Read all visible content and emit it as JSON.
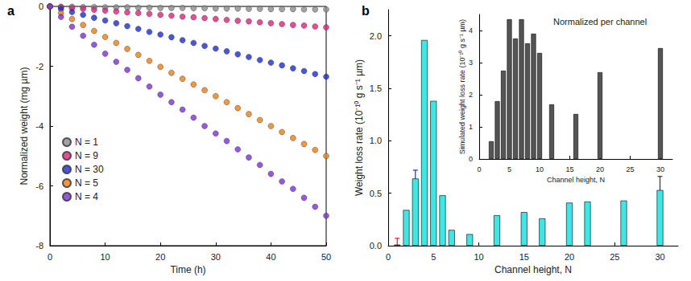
{
  "chart_data": [
    {
      "panel": "a",
      "type": "scatter",
      "marker": "circle",
      "legend": "lower left",
      "x_label": "Time (h)",
      "y_label": "Normalized weight (mg µm)",
      "xlim": [
        0,
        50
      ],
      "xticks": [
        0,
        10,
        20,
        30,
        40,
        50
      ],
      "ylim": [
        -8,
        0
      ],
      "yticks": [
        -8,
        -6,
        -4,
        -2,
        0
      ],
      "x": [
        0,
        2,
        4,
        6,
        8,
        10,
        12,
        14,
        16,
        18,
        20,
        22,
        24,
        26,
        28,
        30,
        32,
        34,
        36,
        38,
        40,
        42,
        44,
        46,
        48,
        50
      ],
      "series": [
        {
          "name": "N = 1",
          "color": "#8c8c8c",
          "values": [
            0,
            -0.01,
            -0.01,
            -0.02,
            -0.02,
            -0.03,
            -0.03,
            -0.03,
            -0.04,
            -0.04,
            -0.05,
            -0.05,
            -0.05,
            -0.06,
            -0.06,
            -0.07,
            -0.07,
            -0.07,
            -0.08,
            -0.08,
            -0.09,
            -0.09,
            -0.09,
            -0.1,
            -0.1,
            -0.1
          ]
        },
        {
          "name": "N = 9",
          "color": "#e0207a",
          "values": [
            0,
            -0.03,
            -0.06,
            -0.08,
            -0.11,
            -0.14,
            -0.17,
            -0.2,
            -0.22,
            -0.25,
            -0.28,
            -0.31,
            -0.34,
            -0.36,
            -0.39,
            -0.42,
            -0.45,
            -0.48,
            -0.5,
            -0.53,
            -0.56,
            -0.59,
            -0.62,
            -0.64,
            -0.67,
            -0.7
          ]
        },
        {
          "name": "N = 30",
          "color": "#1a2bd6",
          "values": [
            0,
            -0.09,
            -0.19,
            -0.28,
            -0.38,
            -0.47,
            -0.56,
            -0.66,
            -0.75,
            -0.85,
            -0.94,
            -1.03,
            -1.13,
            -1.22,
            -1.32,
            -1.41,
            -1.5,
            -1.6,
            -1.69,
            -1.79,
            -1.88,
            -1.97,
            -2.07,
            -2.16,
            -2.26,
            -2.35
          ]
        },
        {
          "name": "N = 5",
          "color": "#f07c10",
          "values": [
            0,
            -0.22,
            -0.42,
            -0.62,
            -0.82,
            -1.02,
            -1.22,
            -1.42,
            -1.62,
            -1.82,
            -2.02,
            -2.22,
            -2.42,
            -2.61,
            -2.8,
            -3.0,
            -3.2,
            -3.4,
            -3.6,
            -3.8,
            -4.0,
            -4.2,
            -4.4,
            -4.6,
            -4.8,
            -5.0
          ]
        },
        {
          "name": "N = 4",
          "color": "#7b2fd8",
          "values": [
            0,
            -0.35,
            -0.68,
            -0.98,
            -1.28,
            -1.58,
            -1.85,
            -2.12,
            -2.4,
            -2.68,
            -2.95,
            -3.2,
            -3.45,
            -3.72,
            -4.0,
            -4.25,
            -4.5,
            -4.78,
            -5.05,
            -5.3,
            -5.6,
            -5.85,
            -6.1,
            -6.4,
            -6.7,
            -7.0
          ]
        }
      ]
    },
    {
      "panel": "b",
      "type": "bar",
      "color": "#3ee6e6",
      "x_label": "Channel height, N",
      "y_label": "Weight loss rate (10⁻¹⁰ g s⁻¹ µm)",
      "xlim": [
        0,
        32
      ],
      "xticks": [
        0,
        5,
        10,
        15,
        20,
        25,
        30
      ],
      "ylim": [
        0,
        2.25
      ],
      "yticks": [
        {
          "value": 0,
          "label": "0.0"
        },
        0.5,
        {
          "value": 1,
          "label": "1.0"
        },
        1.5,
        {
          "value": 2,
          "label": "2.0"
        }
      ],
      "x": [
        1,
        2,
        3,
        4,
        5,
        6,
        7,
        9,
        12,
        15,
        17,
        20,
        22,
        26,
        30
      ],
      "values": [
        0.01,
        0.34,
        0.64,
        1.96,
        1.38,
        0.48,
        0.15,
        0.11,
        0.29,
        0.32,
        0.26,
        0.41,
        0.42,
        0.43,
        0.53
      ],
      "errors": [
        0.06,
        null,
        0.08,
        null,
        null,
        null,
        null,
        null,
        null,
        null,
        null,
        null,
        null,
        null,
        0.13
      ]
    },
    {
      "type": "bar",
      "title": "Normalized per channel",
      "color": "#555555",
      "x_label": "Channel height, N",
      "y_label": "Simulated weight loss rate (10⁻¹⁰ g s⁻¹ µm)",
      "xlim": [
        0,
        32
      ],
      "xticks": [
        0,
        5,
        10,
        15,
        20,
        25,
        30
      ],
      "ylim": [
        0,
        4.5
      ],
      "yticks": [
        0,
        1,
        2,
        3,
        4
      ],
      "x": [
        2,
        3,
        4,
        5,
        6,
        7,
        8,
        9,
        10,
        12,
        16,
        20,
        30
      ],
      "values": [
        0.55,
        1.8,
        2.75,
        4.35,
        3.75,
        4.35,
        3.6,
        3.9,
        3.3,
        1.7,
        1.4,
        2.7,
        3.45
      ]
    }
  ]
}
